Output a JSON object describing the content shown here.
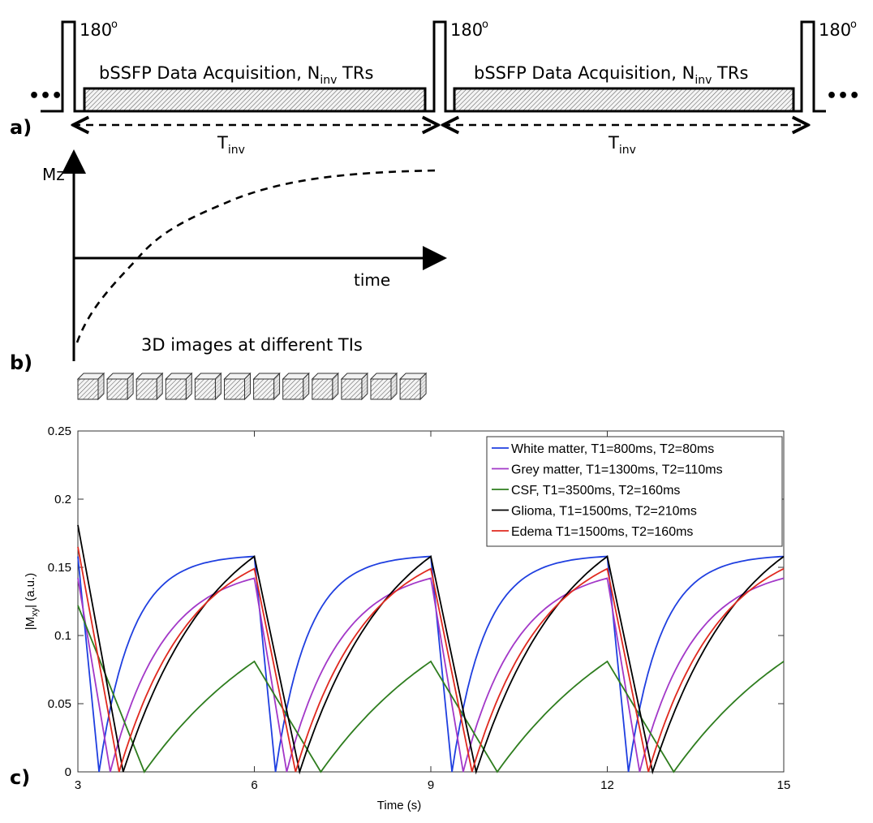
{
  "panel_a": {
    "label": "a)",
    "pulse_label": "180",
    "pulse_degree": "o",
    "acq_text": "bSSFP Data Acquisition, N",
    "acq_sub": "inv",
    "acq_tail": " TRs",
    "interval_main": "T",
    "interval_sub": "inv",
    "ellipsis": "•••"
  },
  "panel_b": {
    "label": "b)",
    "y_axis_label": "Mz",
    "x_axis_label": "time",
    "images_caption": "3D images at different TIs",
    "image_count": 12
  },
  "panel_c": {
    "label": "c)"
  },
  "chart_data": {
    "type": "line",
    "title": "",
    "xlabel": "Time (s)",
    "ylabel_main": "|M",
    "ylabel_sub": "xy",
    "ylabel_tail": "| (a.u.)",
    "xlim": [
      3,
      15
    ],
    "ylim": [
      0,
      0.25
    ],
    "xticks": [
      "3",
      "6",
      "9",
      "12",
      "15"
    ],
    "xtick_values": [
      3,
      6,
      9,
      12,
      15
    ],
    "yticks": [
      "0",
      "0.05",
      "0.1",
      "0.15",
      "0.2",
      "0.25"
    ],
    "ytick_values": [
      0,
      0.05,
      0.1,
      0.15,
      0.2,
      0.25
    ],
    "grid": false,
    "legend_position": "top-right",
    "period_s": 3,
    "series": [
      {
        "name": "White matter, T1=800ms, T2=80ms",
        "color": "#1f3fe0",
        "start": 0.158,
        "zero_t": 0.36,
        "end": 0.158,
        "tau": 0.55
      },
      {
        "name": "Grey matter, T1=1300ms, T2=110ms",
        "color": "#a338c8",
        "start": 0.142,
        "zero_t": 0.55,
        "end": 0.142,
        "tau": 0.9
      },
      {
        "name": "CSF, T1=3500ms, T2=160ms",
        "color": "#2e7d1e",
        "start": 0.122,
        "zero_t": 1.13,
        "end": 0.081,
        "tau": 2.6
      },
      {
        "name": "Glioma, T1=1500ms, T2=210ms",
        "color": "#000000",
        "start": 0.181,
        "zero_t": 0.77,
        "end": 0.158,
        "tau": 1.55
      },
      {
        "name": "Edema T1=1500ms, T2=160ms",
        "color": "#e02a1f",
        "start": 0.165,
        "zero_t": 0.7,
        "end": 0.149,
        "tau": 1.2
      }
    ]
  }
}
